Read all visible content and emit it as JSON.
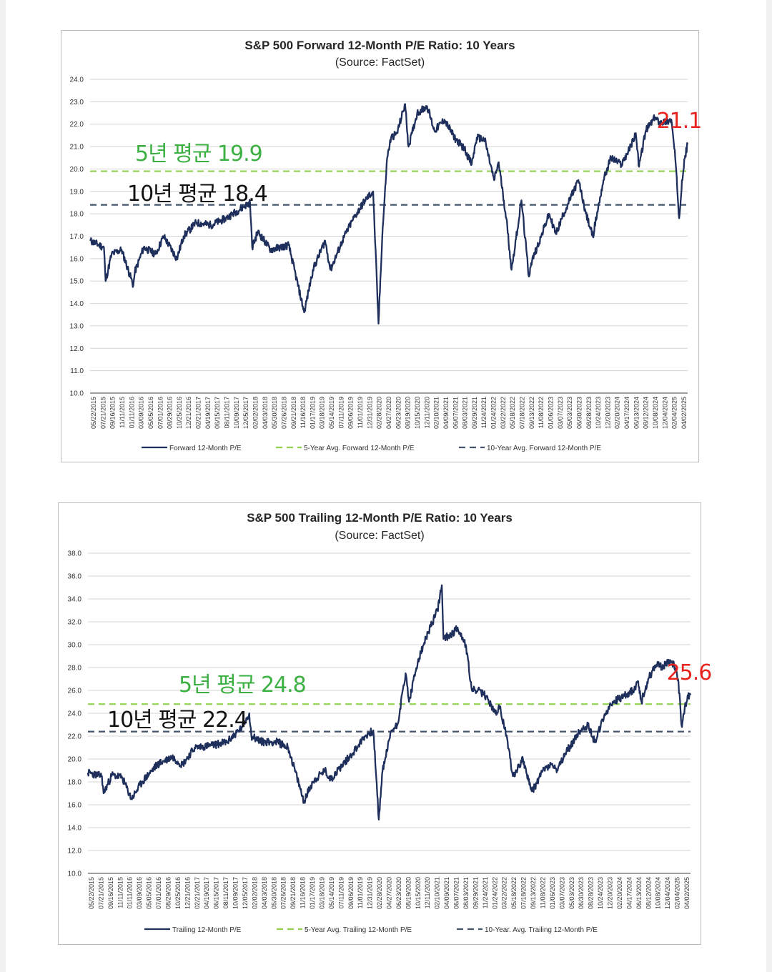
{
  "chart_data": [
    {
      "type": "line",
      "title": "S&P 500 Forward 12-Month P/E Ratio: 10 Years",
      "subtitle": "(Source: FactSet)",
      "ylim": [
        10,
        24
      ],
      "yticks": [
        "10.0",
        "11.0",
        "12.0",
        "13.0",
        "14.0",
        "15.0",
        "16.0",
        "17.0",
        "18.0",
        "19.0",
        "20.0",
        "21.0",
        "22.0",
        "23.0",
        "24.0"
      ],
      "x_tick_labels": [
        "05/22/2015",
        "07/21/2015",
        "09/16/2015",
        "11/11/2015",
        "01/11/2016",
        "03/09/2016",
        "05/05/2016",
        "07/01/2016",
        "08/29/2016",
        "10/25/2016",
        "12/21/2016",
        "02/21/2017",
        "04/19/2017",
        "06/15/2017",
        "08/11/2017",
        "10/09/2017",
        "12/05/2017",
        "02/02/2018",
        "04/03/2018",
        "05/30/2018",
        "07/26/2018",
        "09/21/2018",
        "11/16/2018",
        "01/17/2019",
        "03/18/2019",
        "05/14/2019",
        "07/11/2019",
        "09/06/2019",
        "11/01/2019",
        "12/31/2019",
        "02/28/2020",
        "04/27/2020",
        "06/23/2020",
        "08/19/2020",
        "10/15/2020",
        "12/11/2020",
        "02/10/2021",
        "04/09/2021",
        "06/07/2021",
        "08/03/2021",
        "09/29/2021",
        "11/24/2021",
        "01/24/2022",
        "03/22/2022",
        "05/18/2022",
        "07/18/2022",
        "09/13/2022",
        "11/08/2022",
        "01/06/2023",
        "03/07/2023",
        "05/03/2023",
        "06/30/2023",
        "08/28/2023",
        "10/24/2023",
        "12/20/2023",
        "02/20/2024",
        "04/17/2024",
        "06/13/2024",
        "08/12/2024",
        "10/08/2024",
        "12/04/2024",
        "02/04/2025",
        "04/02/2025"
      ],
      "grid": true,
      "legend_position": "bottom",
      "series": [
        {
          "name": "Forward 12-Month P/E",
          "style": "solid",
          "color": "#1f2f5c",
          "x": [
            "2015-05-22",
            "2015-08-15",
            "2015-08-25",
            "2015-10-01",
            "2015-12-01",
            "2016-02-11",
            "2016-02-20",
            "2016-04-15",
            "2016-06-27",
            "2016-08-15",
            "2016-11-04",
            "2016-12-15",
            "2017-03-01",
            "2017-06-01",
            "2017-09-01",
            "2017-12-15",
            "2018-01-26",
            "2018-02-08",
            "2018-03-15",
            "2018-06-01",
            "2018-09-20",
            "2018-12-24",
            "2019-02-15",
            "2019-05-01",
            "2019-06-03",
            "2019-08-15",
            "2019-10-15",
            "2019-12-31",
            "2020-02-19",
            "2020-03-23",
            "2020-04-15",
            "2020-05-15",
            "2020-06-08",
            "2020-07-15",
            "2020-09-02",
            "2020-09-23",
            "2020-10-15",
            "2020-11-15",
            "2021-01-15",
            "2021-03-01",
            "2021-05-01",
            "2021-07-01",
            "2021-09-01",
            "2021-10-15",
            "2021-11-15",
            "2022-01-03",
            "2022-03-01",
            "2022-03-29",
            "2022-05-15",
            "2022-06-16",
            "2022-08-16",
            "2022-09-30",
            "2022-10-14",
            "2022-12-15",
            "2023-02-01",
            "2023-03-15",
            "2023-05-01",
            "2023-07-31",
            "2023-09-15",
            "2023-10-27",
            "2023-12-31",
            "2024-02-15",
            "2024-04-19",
            "2024-06-15",
            "2024-07-16",
            "2024-08-05",
            "2024-09-15",
            "2024-11-11",
            "2024-12-06",
            "2025-01-15",
            "2025-02-19",
            "2025-03-15",
            "2025-04-08",
            "2025-04-25",
            "2025-05-15",
            "2025-05-30"
          ],
          "y": [
            16.8,
            16.5,
            15.0,
            16.2,
            16.4,
            14.8,
            15.4,
            16.5,
            16.2,
            17.0,
            16.0,
            17.0,
            17.6,
            17.5,
            17.8,
            18.3,
            18.5,
            16.5,
            17.2,
            16.4,
            16.6,
            13.6,
            15.5,
            16.8,
            15.5,
            16.8,
            17.7,
            18.6,
            19.0,
            13.1,
            17.0,
            20.5,
            21.4,
            21.6,
            22.9,
            21.0,
            21.6,
            22.5,
            22.8,
            21.7,
            22.2,
            21.4,
            20.9,
            20.2,
            21.4,
            21.3,
            19.5,
            20.3,
            17.8,
            15.5,
            18.6,
            15.2,
            15.8,
            17.0,
            18.0,
            17.1,
            18.0,
            19.5,
            18.0,
            17.0,
            19.5,
            20.5,
            20.2,
            21.0,
            21.6,
            20.1,
            21.7,
            22.3,
            22.1,
            22.1,
            22.2,
            20.5,
            17.8,
            19.5,
            20.6,
            21.1
          ]
        },
        {
          "name": "5-Year Avg. Forward 12-Month P/E",
          "style": "dashed",
          "color": "#92d050",
          "value": 19.9
        },
        {
          "name": "10-Year Avg. Forward 12-Month P/E",
          "style": "dashed",
          "color": "#44546a",
          "value": 18.4
        }
      ],
      "annotations": [
        {
          "text": "5년 평균 19.9",
          "color": "#3cb043"
        },
        {
          "text": "10년 평균 18.4",
          "color": "#111111"
        },
        {
          "text": "21.1",
          "color": "#e8231f"
        }
      ]
    },
    {
      "type": "line",
      "title": "S&P 500 Trailing 12-Month P/E Ratio: 10 Years",
      "subtitle": "(Source: FactSet)",
      "ylim": [
        10,
        38
      ],
      "yticks": [
        "10.0",
        "12.0",
        "14.0",
        "16.0",
        "18.0",
        "20.0",
        "22.0",
        "24.0",
        "26.0",
        "28.0",
        "30.0",
        "32.0",
        "34.0",
        "36.0",
        "38.0"
      ],
      "x_tick_labels": [
        "05/22/2015",
        "07/21/2015",
        "09/16/2015",
        "11/11/2015",
        "01/11/2016",
        "03/09/2016",
        "05/05/2016",
        "07/01/2016",
        "08/29/2016",
        "10/25/2016",
        "12/21/2016",
        "02/21/2017",
        "04/19/2017",
        "06/15/2017",
        "08/11/2017",
        "10/09/2017",
        "12/05/2017",
        "02/02/2018",
        "04/03/2018",
        "05/30/2018",
        "07/26/2018",
        "09/21/2018",
        "11/16/2018",
        "01/17/2019",
        "03/18/2019",
        "05/14/2019",
        "07/11/2019",
        "09/06/2019",
        "11/01/2019",
        "12/31/2019",
        "02/28/2020",
        "04/27/2020",
        "06/23/2020",
        "08/19/2020",
        "10/15/2020",
        "12/11/2020",
        "02/10/2021",
        "04/09/2021",
        "06/07/2021",
        "08/03/2021",
        "09/29/2021",
        "11/24/2021",
        "01/24/2022",
        "03/22/2022",
        "05/18/2022",
        "07/18/2022",
        "09/13/2022",
        "11/08/2022",
        "01/06/2023",
        "03/07/2023",
        "05/03/2023",
        "06/30/2023",
        "08/28/2023",
        "10/24/2023",
        "12/20/2023",
        "02/20/2024",
        "04/17/2024",
        "06/13/2024",
        "08/12/2024",
        "10/08/2024",
        "12/04/2024",
        "02/04/2025",
        "04/02/2025"
      ],
      "grid": true,
      "legend_position": "bottom",
      "series": [
        {
          "name": "Trailing 12-Month P/E",
          "style": "solid",
          "color": "#1f2f5c",
          "x": [
            "2015-05-22",
            "2015-08-15",
            "2015-08-25",
            "2015-10-15",
            "2015-12-15",
            "2016-02-11",
            "2016-04-15",
            "2016-07-15",
            "2016-10-15",
            "2016-12-15",
            "2017-03-01",
            "2017-06-15",
            "2017-09-15",
            "2017-12-15",
            "2018-01-26",
            "2018-02-08",
            "2018-04-15",
            "2018-07-15",
            "2018-09-20",
            "2018-12-24",
            "2019-02-15",
            "2019-05-01",
            "2019-06-03",
            "2019-08-15",
            "2019-10-15",
            "2019-12-31",
            "2020-02-19",
            "2020-03-23",
            "2020-04-15",
            "2020-06-08",
            "2020-07-15",
            "2020-09-02",
            "2020-09-23",
            "2020-11-15",
            "2021-01-15",
            "2021-03-15",
            "2021-04-10",
            "2021-04-20",
            "2021-06-15",
            "2021-07-15",
            "2021-09-02",
            "2021-10-10",
            "2021-11-15",
            "2022-01-03",
            "2022-03-01",
            "2022-03-29",
            "2022-05-15",
            "2022-06-16",
            "2022-08-16",
            "2022-09-30",
            "2022-10-14",
            "2022-12-15",
            "2023-02-01",
            "2023-03-15",
            "2023-05-01",
            "2023-07-31",
            "2023-09-15",
            "2023-10-27",
            "2023-12-31",
            "2024-02-15",
            "2024-04-19",
            "2024-06-15",
            "2024-07-16",
            "2024-08-05",
            "2024-09-15",
            "2024-11-11",
            "2024-12-06",
            "2025-01-15",
            "2025-02-19",
            "2025-03-15",
            "2025-04-08",
            "2025-04-25",
            "2025-05-15",
            "2025-05-30"
          ],
          "y": [
            18.8,
            18.5,
            17.0,
            18.6,
            18.4,
            16.5,
            18.0,
            19.5,
            20.2,
            19.5,
            21.0,
            21.2,
            21.5,
            22.8,
            24.0,
            22.0,
            21.5,
            21.5,
            21.0,
            16.3,
            18.0,
            19.0,
            18.2,
            19.5,
            20.5,
            22.0,
            22.5,
            14.7,
            19.0,
            22.5,
            23.0,
            27.5,
            25.0,
            28.5,
            31.0,
            33.0,
            35.2,
            30.5,
            31.0,
            31.5,
            30.0,
            26.0,
            26.0,
            25.5,
            24.0,
            24.5,
            21.5,
            18.5,
            20.0,
            17.5,
            17.2,
            19.0,
            19.5,
            19.0,
            20.5,
            22.5,
            23.0,
            21.5,
            24.0,
            25.0,
            25.5,
            26.0,
            26.8,
            25.0,
            27.0,
            28.5,
            28.0,
            28.5,
            28.3,
            27.0,
            22.8,
            24.5,
            25.5,
            25.6
          ]
        },
        {
          "name": "5-Year Avg. Trailing 12-Month P/E",
          "style": "dashed",
          "color": "#92d050",
          "value": 24.8
        },
        {
          "name": "10-Year. Avg. Trailing 12-Month P/E",
          "style": "dashed",
          "color": "#44546a",
          "value": 22.4
        }
      ],
      "annotations": [
        {
          "text": "5년 평균 24.8",
          "color": "#3cb043"
        },
        {
          "text": "10년 평균 22.4",
          "color": "#111111"
        },
        {
          "text": "25.6",
          "color": "#e8231f"
        }
      ]
    }
  ]
}
